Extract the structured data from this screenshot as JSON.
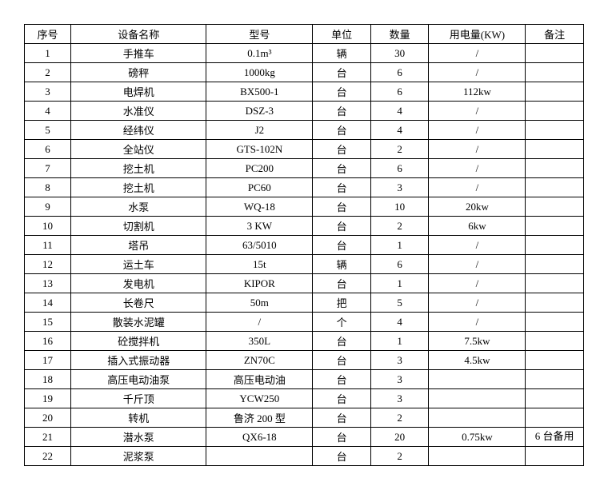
{
  "table": {
    "columns": [
      "序号",
      "设备名称",
      "型号",
      "单位",
      "数量",
      "用电量(KW)",
      "备注"
    ],
    "rows": [
      [
        "1",
        "手推车",
        "0.1m³",
        "辆",
        "30",
        "/",
        ""
      ],
      [
        "2",
        "磅秤",
        "1000kg",
        "台",
        "6",
        "/",
        ""
      ],
      [
        "3",
        "电焊机",
        "BX500-1",
        "台",
        "6",
        "112kw",
        ""
      ],
      [
        "4",
        "水准仪",
        "DSZ-3",
        "台",
        "4",
        "/",
        ""
      ],
      [
        "5",
        "经纬仪",
        "J2",
        "台",
        "4",
        "/",
        ""
      ],
      [
        "6",
        "全站仪",
        "GTS-102N",
        "台",
        "2",
        "/",
        ""
      ],
      [
        "7",
        "挖土机",
        "PC200",
        "台",
        "6",
        "/",
        ""
      ],
      [
        "8",
        "挖土机",
        "PC60",
        "台",
        "3",
        "/",
        ""
      ],
      [
        "9",
        "水泵",
        "WQ-18",
        "台",
        "10",
        "20kw",
        ""
      ],
      [
        "10",
        "切割机",
        "3 KW",
        "台",
        "2",
        "6kw",
        ""
      ],
      [
        "11",
        "塔吊",
        "63/5010",
        "台",
        "1",
        "/",
        ""
      ],
      [
        "12",
        "运土车",
        "15t",
        "辆",
        "6",
        "/",
        ""
      ],
      [
        "13",
        "发电机",
        "KIPOR",
        "台",
        "1",
        "/",
        ""
      ],
      [
        "14",
        "长卷尺",
        "50m",
        "把",
        "5",
        "/",
        ""
      ],
      [
        "15",
        "散装水泥罐",
        "/",
        "个",
        "4",
        "/",
        ""
      ],
      [
        "16",
        "砼搅拌机",
        "350L",
        "台",
        "1",
        "7.5kw",
        ""
      ],
      [
        "17",
        "插入式振动器",
        "ZN70C",
        "台",
        "3",
        "4.5kw",
        ""
      ],
      [
        "18",
        "高压电动油泵",
        "高压电动油",
        "台",
        "3",
        "",
        ""
      ],
      [
        "19",
        "千斤顶",
        "YCW250",
        "台",
        "3",
        "",
        ""
      ],
      [
        "20",
        "转机",
        "鲁济 200 型",
        "台",
        "2",
        "",
        ""
      ],
      [
        "21",
        "潜水泵",
        "QX6-18",
        "台",
        "20",
        "0.75kw",
        "6 台备用"
      ],
      [
        "22",
        "泥浆泵",
        "",
        "台",
        "2",
        "",
        ""
      ]
    ]
  }
}
